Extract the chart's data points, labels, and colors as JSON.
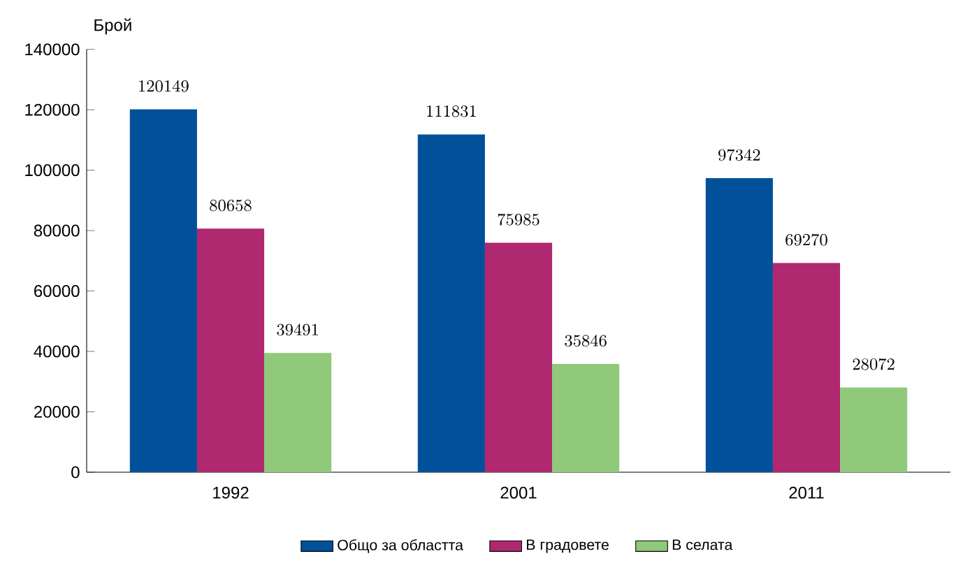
{
  "chart_data": {
    "type": "bar",
    "ylabel": "Брой",
    "categories": [
      "1992",
      "2001",
      "2011"
    ],
    "series": [
      {
        "name": "Общо за областта",
        "color": "#00519a",
        "values": [
          120149,
          111831,
          97342
        ]
      },
      {
        "name": "В градовете",
        "color": "#b0286f",
        "values": [
          80658,
          75985,
          69270
        ]
      },
      {
        "name": "В селата",
        "color": "#90c97a",
        "values": [
          39491,
          35846,
          28072
        ]
      }
    ],
    "ylim": [
      0,
      140000
    ],
    "yticks": [
      0,
      20000,
      40000,
      60000,
      80000,
      100000,
      120000,
      140000
    ],
    "data_labels": true,
    "legend": "bottom",
    "grid": false
  }
}
